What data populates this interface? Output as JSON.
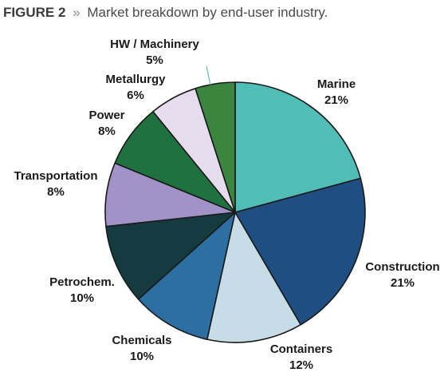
{
  "figure": {
    "label": "FIGURE 2",
    "separator": "»",
    "title": "Market breakdown by end-user industry."
  },
  "chart_data": {
    "type": "pie",
    "title": "Market breakdown by end-user industry.",
    "slices": [
      {
        "name": "Marine",
        "value": 21,
        "label": "21%",
        "color": "#50bdb7"
      },
      {
        "name": "Construction",
        "value": 21,
        "label": "21%",
        "color": "#1f4e82"
      },
      {
        "name": "Containers",
        "value": 12,
        "label": "12%",
        "color": "#c6dce6"
      },
      {
        "name": "Chemicals",
        "value": 10,
        "label": "10%",
        "color": "#2c6fa3"
      },
      {
        "name": "Petrochem.",
        "value": 10,
        "label": "10%",
        "color": "#143b3f"
      },
      {
        "name": "Transportation",
        "value": 8,
        "label": "8%",
        "color": "#a193c8"
      },
      {
        "name": "Power",
        "value": 8,
        "label": "8%",
        "color": "#1f7240"
      },
      {
        "name": "Metallurgy",
        "value": 6,
        "label": "6%",
        "color": "#e6dced"
      },
      {
        "name": "HW / Machinery",
        "value": 5,
        "label": "5%",
        "color": "#3b8541"
      }
    ],
    "start_angle_deg": 0,
    "direction": "clockwise",
    "legend": "none"
  }
}
